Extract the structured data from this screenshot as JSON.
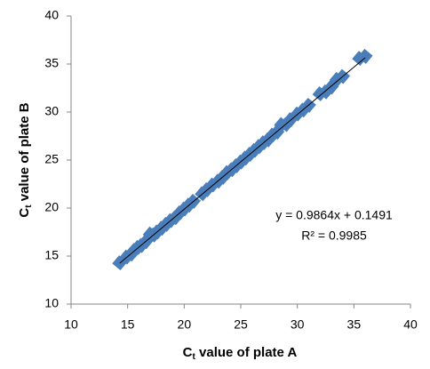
{
  "chart_data": {
    "type": "scatter",
    "xlabel": [
      "C",
      "t",
      " value of plate A"
    ],
    "ylabel": [
      "C",
      "t",
      " value of plate B"
    ],
    "x": [
      14.3,
      14.9,
      15.3,
      15.6,
      15.9,
      16.2,
      16.6,
      17.0,
      17.3,
      17.6,
      18.0,
      18.4,
      18.8,
      19.2,
      19.6,
      20.0,
      20.4,
      20.8,
      21.6,
      22.0,
      22.5,
      23.0,
      23.4,
      23.8,
      24.2,
      24.6,
      25.0,
      25.4,
      25.8,
      26.2,
      26.6,
      27.0,
      27.4,
      27.8,
      28.2,
      28.6,
      29.0,
      29.4,
      30.0,
      30.5,
      31.0,
      32.0,
      32.5,
      33.0,
      33.5,
      34.0,
      35.5,
      36.0
    ],
    "values": [
      14.3,
      14.9,
      15.2,
      15.6,
      15.9,
      16.1,
      16.5,
      17.3,
      17.2,
      17.5,
      17.9,
      18.3,
      18.7,
      19.0,
      19.5,
      19.9,
      20.3,
      20.7,
      21.5,
      21.9,
      22.4,
      22.8,
      23.2,
      23.7,
      24.0,
      24.4,
      24.8,
      25.2,
      25.6,
      26.0,
      26.4,
      26.8,
      27.1,
      27.6,
      27.9,
      28.7,
      28.7,
      29.2,
      29.8,
      30.2,
      30.7,
      31.9,
      32.1,
      32.6,
      33.4,
      33.7,
      35.6,
      35.8
    ],
    "color": "#4a7ebb",
    "trendline": {
      "slope": 0.9864,
      "intercept": 0.1491,
      "color": "#000000"
    },
    "annotations": [
      "y = 0.9864x + 0.1491",
      "R² = 0.9985"
    ],
    "xlim": [
      10,
      40
    ],
    "xticks": [
      10,
      15,
      20,
      25,
      30,
      35,
      40
    ],
    "ylim": [
      10,
      40
    ],
    "yticks": [
      10,
      15,
      20,
      25,
      30,
      35,
      40
    ],
    "grid": false
  }
}
